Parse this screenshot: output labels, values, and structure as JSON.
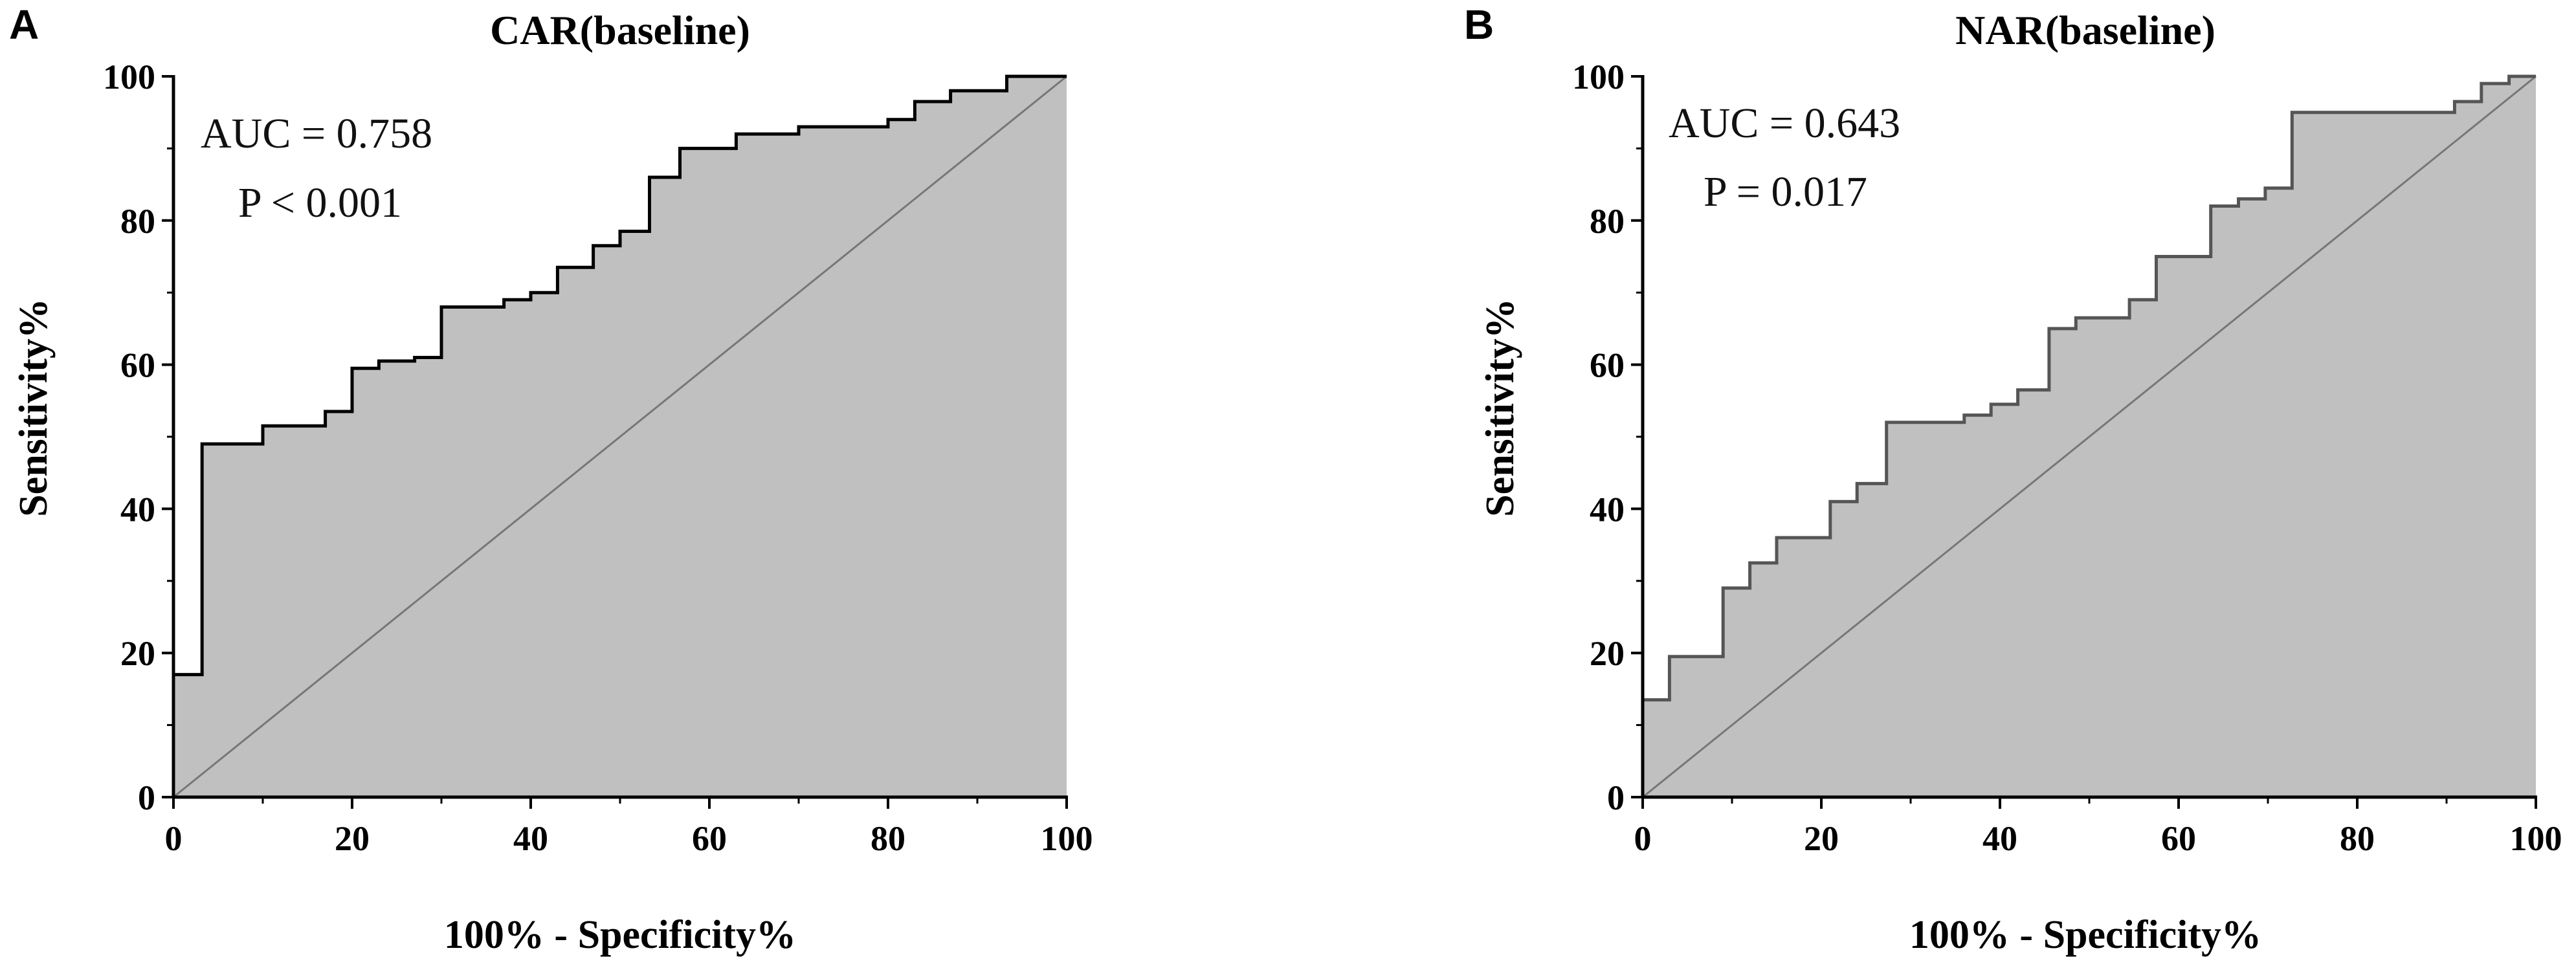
{
  "chart_data": [
    {
      "type": "area",
      "panel": "A",
      "title": "CAR(baseline)",
      "xlabel": "100% - Specificity%",
      "ylabel": "Sensitivity%",
      "xlim": [
        0,
        100
      ],
      "ylim": [
        0,
        100
      ],
      "x_ticks": [
        "0",
        "20",
        "40",
        "60",
        "80",
        "100"
      ],
      "y_ticks": [
        "0",
        "20",
        "40",
        "60",
        "80",
        "100"
      ],
      "grid": false,
      "annotations": [
        "AUC = 0.758",
        "P < 0.001"
      ],
      "colors": {
        "fill": "#c0c0c0",
        "curve": "#000000",
        "reference": "#777777"
      },
      "roc_points": [
        [
          0,
          0
        ],
        [
          0,
          17
        ],
        [
          3.2,
          17
        ],
        [
          3.2,
          49
        ],
        [
          10,
          49
        ],
        [
          10,
          51.5
        ],
        [
          17,
          51.5
        ],
        [
          17,
          53.5
        ],
        [
          20,
          53.5
        ],
        [
          20,
          59.5
        ],
        [
          23,
          59.5
        ],
        [
          23,
          60.5
        ],
        [
          27,
          60.5
        ],
        [
          27,
          61
        ],
        [
          30,
          61
        ],
        [
          30,
          68
        ],
        [
          37,
          68
        ],
        [
          37,
          69
        ],
        [
          40,
          69
        ],
        [
          40,
          70
        ],
        [
          43,
          70
        ],
        [
          43,
          73.5
        ],
        [
          47,
          73.5
        ],
        [
          47,
          76.5
        ],
        [
          50,
          76.5
        ],
        [
          50,
          78.5
        ],
        [
          53.3,
          78.5
        ],
        [
          53.3,
          86
        ],
        [
          56.7,
          86
        ],
        [
          56.7,
          90
        ],
        [
          63,
          90
        ],
        [
          63,
          92
        ],
        [
          70,
          92
        ],
        [
          70,
          93
        ],
        [
          80,
          93
        ],
        [
          80,
          94
        ],
        [
          83,
          94
        ],
        [
          83,
          96.5
        ],
        [
          87,
          96.5
        ],
        [
          87,
          98
        ],
        [
          93.3,
          98
        ],
        [
          93.3,
          100
        ],
        [
          100,
          100
        ]
      ]
    },
    {
      "type": "area",
      "panel": "B",
      "title": "NAR(baseline)",
      "xlabel": "100% - Specificity%",
      "ylabel": "Sensitivity%",
      "xlim": [
        0,
        100
      ],
      "ylim": [
        0,
        100
      ],
      "x_ticks": [
        "0",
        "20",
        "40",
        "60",
        "80",
        "100"
      ],
      "y_ticks": [
        "0",
        "20",
        "40",
        "60",
        "80",
        "100"
      ],
      "grid": false,
      "annotations": [
        "AUC = 0.643",
        "P = 0.017"
      ],
      "colors": {
        "fill": "#c0c0c0",
        "curve": "#555555",
        "reference": "#777777"
      },
      "roc_points": [
        [
          0,
          0
        ],
        [
          0,
          13.5
        ],
        [
          3,
          13.5
        ],
        [
          3,
          19.5
        ],
        [
          9,
          19.5
        ],
        [
          9,
          29
        ],
        [
          12,
          29
        ],
        [
          12,
          32.5
        ],
        [
          15,
          32.5
        ],
        [
          15,
          36
        ],
        [
          21,
          36
        ],
        [
          21,
          41
        ],
        [
          24,
          41
        ],
        [
          24,
          43.5
        ],
        [
          27.3,
          43.5
        ],
        [
          27.3,
          52
        ],
        [
          36,
          52
        ],
        [
          36,
          53
        ],
        [
          39,
          53
        ],
        [
          39,
          54.5
        ],
        [
          42,
          54.5
        ],
        [
          42,
          56.5
        ],
        [
          45.5,
          56.5
        ],
        [
          45.5,
          65
        ],
        [
          48.5,
          65
        ],
        [
          48.5,
          66.5
        ],
        [
          54.5,
          66.5
        ],
        [
          54.5,
          69
        ],
        [
          57.5,
          69
        ],
        [
          57.5,
          75
        ],
        [
          63.6,
          75
        ],
        [
          63.6,
          82
        ],
        [
          66.7,
          82
        ],
        [
          66.7,
          83
        ],
        [
          69.7,
          83
        ],
        [
          69.7,
          84.5
        ],
        [
          72.7,
          84.5
        ],
        [
          72.7,
          95
        ],
        [
          90.9,
          95
        ],
        [
          90.9,
          96.5
        ],
        [
          93.9,
          96.5
        ],
        [
          93.9,
          99
        ],
        [
          97,
          99
        ],
        [
          97,
          100
        ],
        [
          100,
          100
        ]
      ]
    }
  ]
}
